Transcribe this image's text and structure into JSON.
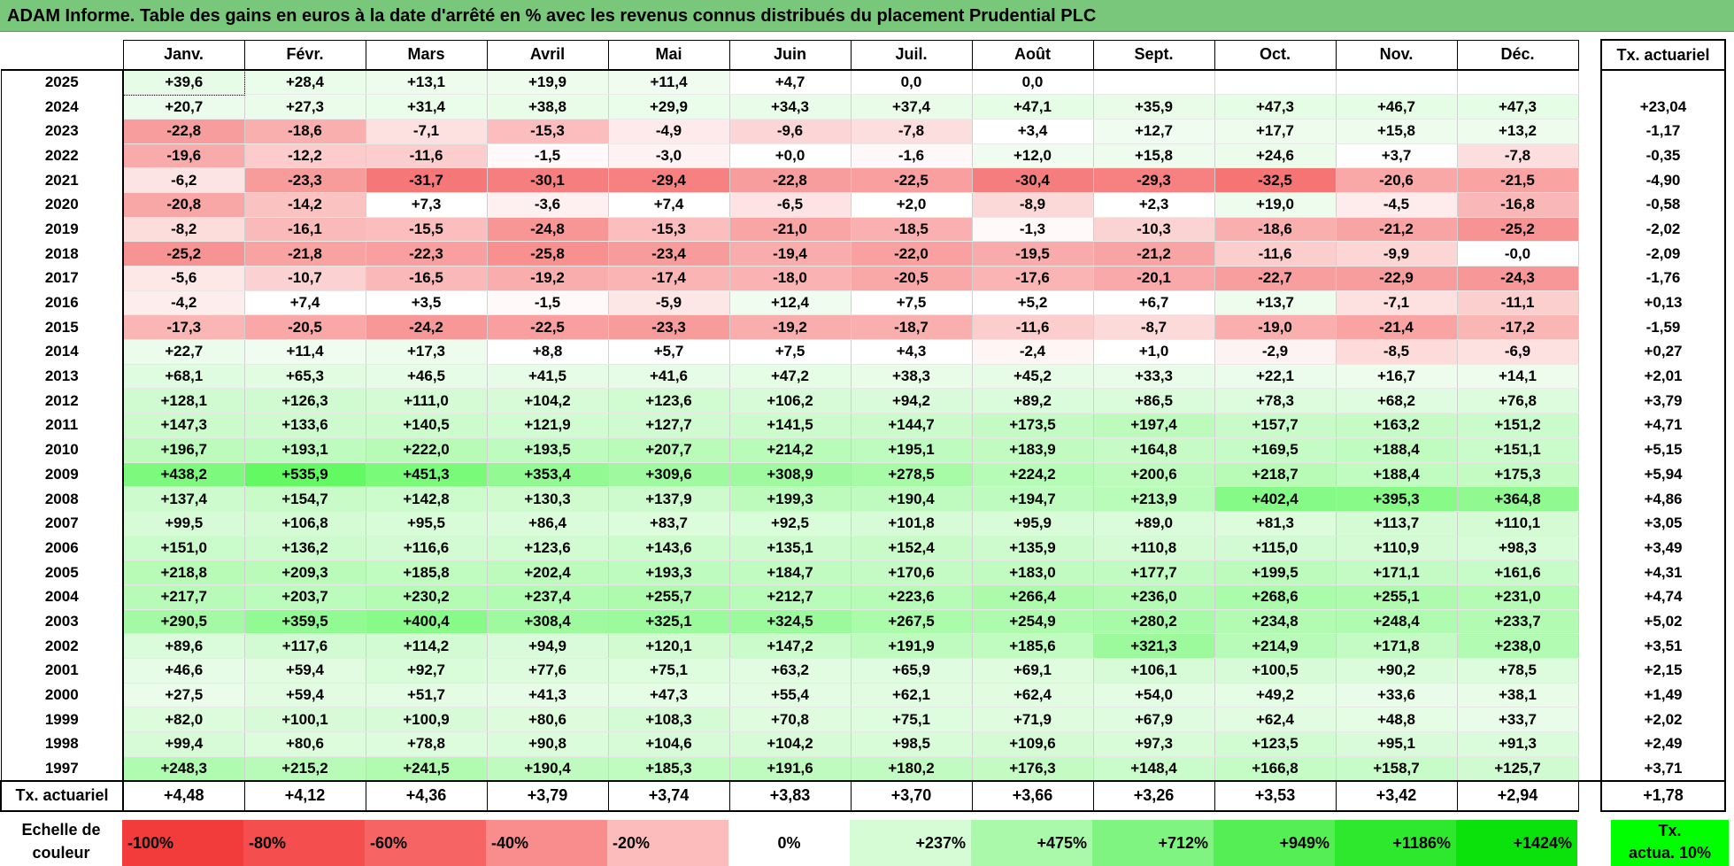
{
  "title": "ADAM Informe. Table des gains en euros à la date d'arrêté en % avec les revenus connus distribués du placement Prudential PLC",
  "months": [
    "Janv.",
    "Févr.",
    "Mars",
    "Avril",
    "Mai",
    "Juin",
    "Juil.",
    "Août",
    "Sept.",
    "Oct.",
    "Nov.",
    "Déc."
  ],
  "rate_header": "Tx. actuariel",
  "footer_label": "Tx. actuariel",
  "rows": [
    {
      "year": "2025",
      "cells": [
        "+39,6",
        "+28,4",
        "+13,1",
        "+19,9",
        "+11,4",
        "+4,7",
        "0,0",
        "0,0",
        "",
        "",
        "",
        ""
      ],
      "rate": ""
    },
    {
      "year": "2024",
      "cells": [
        "+20,7",
        "+27,3",
        "+31,4",
        "+38,8",
        "+29,9",
        "+34,3",
        "+37,4",
        "+47,1",
        "+35,9",
        "+47,3",
        "+46,7",
        "+47,3"
      ],
      "rate": "+23,04"
    },
    {
      "year": "2023",
      "cells": [
        "-22,8",
        "-18,6",
        "-7,1",
        "-15,3",
        "-4,9",
        "-9,6",
        "-7,8",
        "+3,4",
        "+12,7",
        "+17,7",
        "+15,8",
        "+13,2"
      ],
      "rate": "-1,17"
    },
    {
      "year": "2022",
      "cells": [
        "-19,6",
        "-12,2",
        "-11,6",
        "-1,5",
        "-3,0",
        "+0,0",
        "-1,6",
        "+12,0",
        "+15,8",
        "+24,6",
        "+3,7",
        "-7,8"
      ],
      "rate": "-0,35"
    },
    {
      "year": "2021",
      "cells": [
        "-6,2",
        "-23,3",
        "-31,7",
        "-30,1",
        "-29,4",
        "-22,8",
        "-22,5",
        "-30,4",
        "-29,3",
        "-32,5",
        "-20,6",
        "-21,5"
      ],
      "rate": "-4,90"
    },
    {
      "year": "2020",
      "cells": [
        "-20,8",
        "-14,2",
        "+7,3",
        "-3,6",
        "+7,4",
        "-6,5",
        "+2,0",
        "-8,9",
        "+2,3",
        "+19,0",
        "-4,5",
        "-16,8"
      ],
      "rate": "-0,58"
    },
    {
      "year": "2019",
      "cells": [
        "-8,2",
        "-16,1",
        "-15,5",
        "-24,8",
        "-15,3",
        "-21,0",
        "-18,5",
        "-1,3",
        "-10,3",
        "-18,6",
        "-21,2",
        "-25,2"
      ],
      "rate": "-2,02"
    },
    {
      "year": "2018",
      "cells": [
        "-25,2",
        "-21,8",
        "-22,3",
        "-25,8",
        "-23,4",
        "-19,4",
        "-22,0",
        "-19,5",
        "-21,2",
        "-11,6",
        "-9,9",
        "-0,0"
      ],
      "rate": "-2,09"
    },
    {
      "year": "2017",
      "cells": [
        "-5,6",
        "-10,7",
        "-16,5",
        "-19,2",
        "-17,4",
        "-18,0",
        "-20,5",
        "-17,6",
        "-20,1",
        "-22,7",
        "-22,9",
        "-24,3"
      ],
      "rate": "-1,76"
    },
    {
      "year": "2016",
      "cells": [
        "-4,2",
        "+7,4",
        "+3,5",
        "-1,5",
        "-5,9",
        "+12,4",
        "+7,5",
        "+5,2",
        "+6,7",
        "+13,7",
        "-7,1",
        "-11,1"
      ],
      "rate": "+0,13"
    },
    {
      "year": "2015",
      "cells": [
        "-17,3",
        "-20,5",
        "-24,2",
        "-22,5",
        "-23,3",
        "-19,2",
        "-18,7",
        "-11,6",
        "-8,7",
        "-19,0",
        "-21,4",
        "-17,2"
      ],
      "rate": "-1,59"
    },
    {
      "year": "2014",
      "cells": [
        "+22,7",
        "+11,4",
        "+17,3",
        "+8,8",
        "+5,7",
        "+7,5",
        "+4,3",
        "-2,4",
        "+1,0",
        "-2,9",
        "-8,5",
        "-6,9"
      ],
      "rate": "+0,27"
    },
    {
      "year": "2013",
      "cells": [
        "+68,1",
        "+65,3",
        "+46,5",
        "+41,5",
        "+41,6",
        "+47,2",
        "+38,3",
        "+45,2",
        "+33,3",
        "+22,1",
        "+16,7",
        "+14,1"
      ],
      "rate": "+2,01"
    },
    {
      "year": "2012",
      "cells": [
        "+128,1",
        "+126,3",
        "+111,0",
        "+104,2",
        "+123,6",
        "+106,2",
        "+94,2",
        "+89,2",
        "+86,5",
        "+78,3",
        "+68,2",
        "+76,8"
      ],
      "rate": "+3,79"
    },
    {
      "year": "2011",
      "cells": [
        "+147,3",
        "+133,6",
        "+140,5",
        "+121,9",
        "+127,7",
        "+141,5",
        "+144,7",
        "+173,5",
        "+197,4",
        "+157,7",
        "+163,2",
        "+151,2"
      ],
      "rate": "+4,71"
    },
    {
      "year": "2010",
      "cells": [
        "+196,7",
        "+193,1",
        "+222,0",
        "+193,5",
        "+207,7",
        "+214,2",
        "+195,1",
        "+183,9",
        "+164,8",
        "+169,5",
        "+188,4",
        "+151,1"
      ],
      "rate": "+5,15"
    },
    {
      "year": "2009",
      "cells": [
        "+438,2",
        "+535,9",
        "+451,3",
        "+353,4",
        "+309,6",
        "+308,9",
        "+278,5",
        "+224,2",
        "+200,6",
        "+218,7",
        "+188,4",
        "+175,3"
      ],
      "rate": "+5,94"
    },
    {
      "year": "2008",
      "cells": [
        "+137,4",
        "+154,7",
        "+142,8",
        "+130,3",
        "+137,9",
        "+199,3",
        "+190,4",
        "+194,7",
        "+213,9",
        "+402,4",
        "+395,3",
        "+364,8"
      ],
      "rate": "+4,86"
    },
    {
      "year": "2007",
      "cells": [
        "+99,5",
        "+106,8",
        "+95,5",
        "+86,4",
        "+83,7",
        "+92,5",
        "+101,8",
        "+95,9",
        "+89,0",
        "+81,3",
        "+113,7",
        "+110,1"
      ],
      "rate": "+3,05"
    },
    {
      "year": "2006",
      "cells": [
        "+151,0",
        "+136,2",
        "+116,6",
        "+123,6",
        "+143,6",
        "+135,1",
        "+152,4",
        "+135,9",
        "+110,8",
        "+115,0",
        "+110,9",
        "+98,3"
      ],
      "rate": "+3,49"
    },
    {
      "year": "2005",
      "cells": [
        "+218,8",
        "+209,3",
        "+185,8",
        "+202,4",
        "+193,3",
        "+184,7",
        "+170,6",
        "+183,0",
        "+177,7",
        "+199,5",
        "+171,1",
        "+161,6"
      ],
      "rate": "+4,31"
    },
    {
      "year": "2004",
      "cells": [
        "+217,7",
        "+203,7",
        "+230,2",
        "+237,4",
        "+255,7",
        "+212,7",
        "+223,6",
        "+266,4",
        "+236,0",
        "+268,6",
        "+255,1",
        "+231,0"
      ],
      "rate": "+4,74"
    },
    {
      "year": "2003",
      "cells": [
        "+290,5",
        "+359,5",
        "+400,4",
        "+308,4",
        "+325,1",
        "+324,5",
        "+267,5",
        "+254,9",
        "+280,2",
        "+234,8",
        "+248,4",
        "+233,7"
      ],
      "rate": "+5,02"
    },
    {
      "year": "2002",
      "cells": [
        "+89,6",
        "+117,6",
        "+114,2",
        "+94,9",
        "+120,1",
        "+147,2",
        "+191,9",
        "+185,6",
        "+321,3",
        "+214,9",
        "+171,8",
        "+238,0"
      ],
      "rate": "+3,51"
    },
    {
      "year": "2001",
      "cells": [
        "+46,6",
        "+59,4",
        "+92,7",
        "+77,6",
        "+75,1",
        "+63,2",
        "+65,9",
        "+69,1",
        "+106,1",
        "+100,5",
        "+90,2",
        "+78,5"
      ],
      "rate": "+2,15"
    },
    {
      "year": "2000",
      "cells": [
        "+27,5",
        "+59,4",
        "+51,7",
        "+41,3",
        "+47,3",
        "+55,4",
        "+62,1",
        "+62,4",
        "+54,0",
        "+49,2",
        "+33,6",
        "+38,1"
      ],
      "rate": "+1,49"
    },
    {
      "year": "1999",
      "cells": [
        "+82,0",
        "+100,1",
        "+100,9",
        "+80,6",
        "+108,3",
        "+70,8",
        "+75,1",
        "+71,9",
        "+67,9",
        "+62,4",
        "+48,8",
        "+33,7"
      ],
      "rate": "+2,02"
    },
    {
      "year": "1998",
      "cells": [
        "+99,4",
        "+80,6",
        "+78,8",
        "+90,8",
        "+104,6",
        "+104,2",
        "+98,5",
        "+109,6",
        "+97,3",
        "+123,5",
        "+95,1",
        "+91,3"
      ],
      "rate": "+2,49"
    },
    {
      "year": "1997",
      "cells": [
        "+248,3",
        "+215,2",
        "+241,5",
        "+190,4",
        "+185,3",
        "+191,6",
        "+180,2",
        "+176,3",
        "+148,4",
        "+166,8",
        "+158,7",
        "+125,7"
      ],
      "rate": "+3,71"
    }
  ],
  "footer_cells": [
    "+4,48",
    "+4,12",
    "+4,36",
    "+3,79",
    "+3,74",
    "+3,83",
    "+3,70",
    "+3,66",
    "+3,26",
    "+3,53",
    "+3,42",
    "+2,94"
  ],
  "footer_rate": "+1,78",
  "scale": {
    "label_line1": "Echelle de",
    "label_line2": "couleur",
    "swatches": [
      {
        "text": "-100%",
        "color": "#f23c3c",
        "align": "l"
      },
      {
        "text": "-80%",
        "color": "#f44e4e",
        "align": "l"
      },
      {
        "text": "-60%",
        "color": "#f66464",
        "align": "l"
      },
      {
        "text": "-40%",
        "color": "#f98c8c",
        "align": "l"
      },
      {
        "text": "-20%",
        "color": "#fcbcbc",
        "align": "l"
      },
      {
        "text": "0%",
        "color": "#ffffff",
        "align": "c"
      },
      {
        "text": "+237%",
        "color": "#d6fcd6",
        "align": "r"
      },
      {
        "text": "+475%",
        "color": "#aaf8aa",
        "align": "r"
      },
      {
        "text": "+712%",
        "color": "#80f480",
        "align": "r"
      },
      {
        "text": "+949%",
        "color": "#55ee55",
        "align": "r"
      },
      {
        "text": "+1186%",
        "color": "#2ee82e",
        "align": "r"
      },
      {
        "text": "+1424%",
        "color": "#0be20b",
        "align": "r"
      }
    ],
    "actuarial_line1": "Tx.",
    "actuarial_line2": "actua. 10%"
  }
}
